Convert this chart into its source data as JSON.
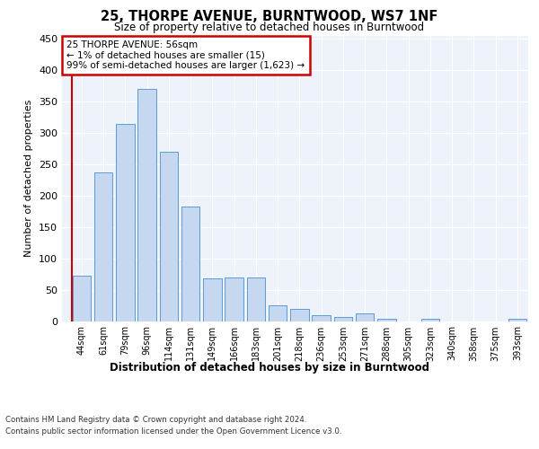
{
  "title": "25, THORPE AVENUE, BURNTWOOD, WS7 1NF",
  "subtitle": "Size of property relative to detached houses in Burntwood",
  "xlabel": "Distribution of detached houses by size in Burntwood",
  "ylabel": "Number of detached properties",
  "categories": [
    "44sqm",
    "61sqm",
    "79sqm",
    "96sqm",
    "114sqm",
    "131sqm",
    "149sqm",
    "166sqm",
    "183sqm",
    "201sqm",
    "218sqm",
    "236sqm",
    "253sqm",
    "271sqm",
    "288sqm",
    "305sqm",
    "323sqm",
    "340sqm",
    "358sqm",
    "375sqm",
    "393sqm"
  ],
  "values": [
    72,
    237,
    315,
    370,
    270,
    183,
    68,
    70,
    70,
    25,
    20,
    10,
    7,
    12,
    3,
    0,
    4,
    0,
    0,
    0,
    4
  ],
  "bar_color": "#c5d8f0",
  "bar_edge_color": "#5b9bd5",
  "highlight_line_color": "#cc0000",
  "annotation_text": "25 THORPE AVENUE: 56sqm\n← 1% of detached houses are smaller (15)\n99% of semi-detached houses are larger (1,623) →",
  "annotation_box_color": "#ffffff",
  "annotation_box_edge_color": "#cc0000",
  "ylim": [
    0,
    455
  ],
  "yticks": [
    0,
    50,
    100,
    150,
    200,
    250,
    300,
    350,
    400,
    450
  ],
  "background_color": "#eef2fa",
  "footer_line1": "Contains HM Land Registry data © Crown copyright and database right 2024.",
  "footer_line2": "Contains public sector information licensed under the Open Government Licence v3.0."
}
